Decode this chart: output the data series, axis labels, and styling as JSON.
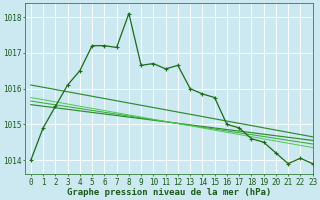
{
  "bg_color": "#cce8f0",
  "grid_color": "#ffffff",
  "xlabel": "Graphe pression niveau de la mer (hPa)",
  "xlabel_fontsize": 6.5,
  "tick_fontsize": 5.5,
  "xlim": [
    -0.5,
    23
  ],
  "ylim": [
    1013.6,
    1018.4
  ],
  "yticks": [
    1014,
    1015,
    1016,
    1017,
    1018
  ],
  "xticks": [
    0,
    1,
    2,
    3,
    4,
    5,
    6,
    7,
    8,
    9,
    10,
    11,
    12,
    13,
    14,
    15,
    16,
    17,
    18,
    19,
    20,
    21,
    22,
    23
  ],
  "series": [
    {
      "x": [
        0,
        1,
        2,
        3,
        4,
        5,
        6,
        7,
        8,
        9,
        10,
        11,
        12,
        13,
        14,
        15,
        16,
        17,
        18,
        19,
        20,
        21,
        22,
        23
      ],
      "y": [
        1014.0,
        1014.9,
        1015.5,
        1016.1,
        1016.5,
        1017.2,
        1017.2,
        1017.15,
        1018.1,
        1016.65,
        1016.7,
        1016.55,
        1016.65,
        1016.0,
        1015.85,
        1015.75,
        1015.0,
        1014.9,
        1014.6,
        1014.5,
        1014.2,
        1013.9,
        1014.05,
        1013.9
      ],
      "color": "#1a6b1a",
      "marker": "+",
      "linewidth": 0.9,
      "markersize": 3.5,
      "zorder": 5
    },
    {
      "x": [
        0,
        23
      ],
      "y": [
        1015.55,
        1014.55
      ],
      "color": "#2d8b2d",
      "marker": null,
      "linewidth": 0.85,
      "zorder": 3
    },
    {
      "x": [
        0,
        23
      ],
      "y": [
        1015.65,
        1014.45
      ],
      "color": "#3aaa3a",
      "marker": null,
      "linewidth": 0.75,
      "zorder": 3
    },
    {
      "x": [
        0,
        23
      ],
      "y": [
        1015.75,
        1014.35
      ],
      "color": "#4dc94d",
      "marker": null,
      "linewidth": 0.7,
      "zorder": 3
    },
    {
      "x": [
        0,
        23
      ],
      "y": [
        1016.1,
        1014.65
      ],
      "color": "#2d8b2d",
      "marker": null,
      "linewidth": 0.85,
      "zorder": 3
    }
  ]
}
